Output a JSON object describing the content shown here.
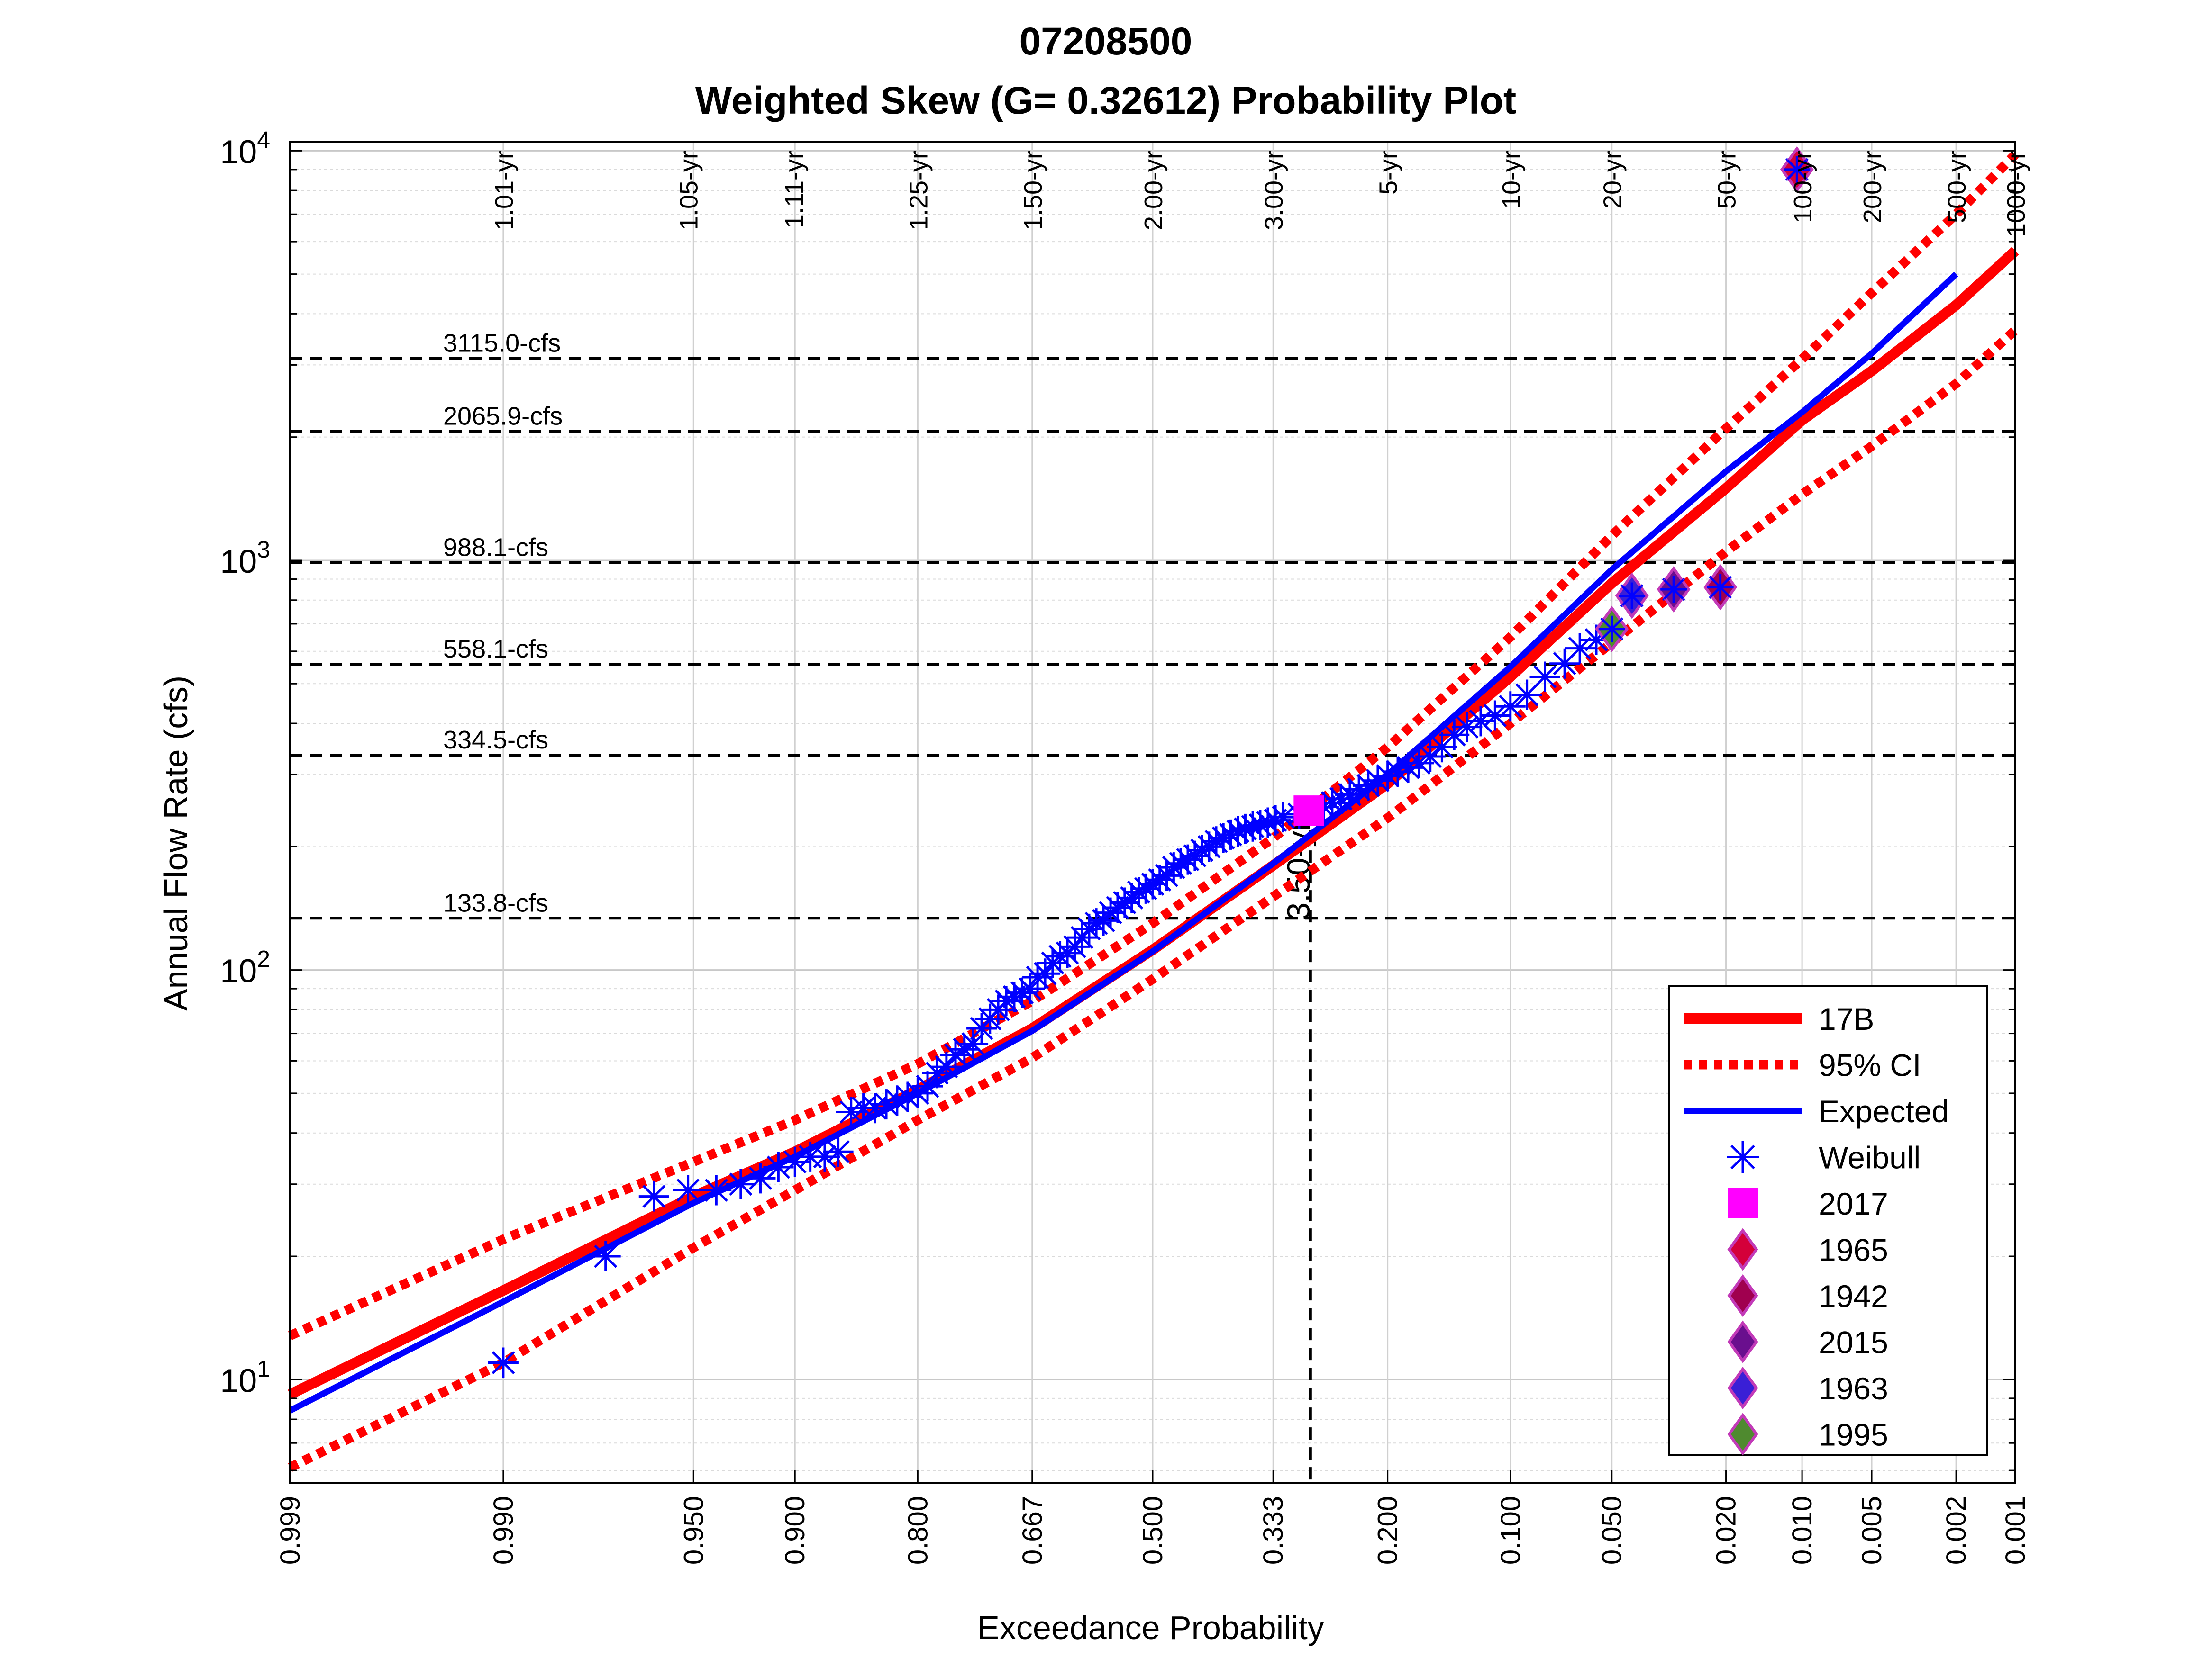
{
  "chart_data": {
    "type": "scatter",
    "title": "07208500",
    "subtitle": "Weighted Skew (G= 0.32612) Probability Plot",
    "xlabel": "Exceedance Probability",
    "ylabel": "Annual Flow Rate (cfs)",
    "x_scale": "normal-probability (reversed)",
    "y_scale": "log",
    "xlim": [
      0.999,
      0.001
    ],
    "ylim": [
      5.6,
      10500
    ],
    "grid": true,
    "legend_position": "bottom-right",
    "x_ticks": [
      "0.999",
      "0.990",
      "0.950",
      "0.900",
      "0.800",
      "0.667",
      "0.500",
      "0.333",
      "0.200",
      "0.100",
      "0.050",
      "0.020",
      "0.010",
      "0.005",
      "0.002",
      "0.001"
    ],
    "x_tick_values": [
      0.999,
      0.99,
      0.95,
      0.9,
      0.8,
      0.667,
      0.5,
      0.333,
      0.2,
      0.1,
      0.05,
      0.02,
      0.01,
      0.005,
      0.002,
      0.001
    ],
    "y_ticks": [
      {
        "value": 10,
        "base": "10",
        "exp": "1"
      },
      {
        "value": 100,
        "base": "10",
        "exp": "2"
      },
      {
        "value": 1000,
        "base": "10",
        "exp": "3"
      },
      {
        "value": 10000,
        "base": "10",
        "exp": "4"
      }
    ],
    "return_period_labels": [
      {
        "label": "1.01-yr",
        "p": 0.99
      },
      {
        "label": "1.05-yr",
        "p": 0.952
      },
      {
        "label": "1.11-yr",
        "p": 0.901
      },
      {
        "label": "1.25-yr",
        "p": 0.8
      },
      {
        "label": "1.50-yr",
        "p": 0.667
      },
      {
        "label": "2.00-yr",
        "p": 0.5
      },
      {
        "label": "3.00-yr",
        "p": 0.333
      },
      {
        "label": "5-yr",
        "p": 0.2
      },
      {
        "label": "10-yr",
        "p": 0.1
      },
      {
        "label": "20-yr",
        "p": 0.05
      },
      {
        "label": "50-yr",
        "p": 0.02
      },
      {
        "label": "100-yr",
        "p": 0.01
      },
      {
        "label": "200-yr",
        "p": 0.005
      },
      {
        "label": "500-yr",
        "p": 0.002
      },
      {
        "label": "1000-yr",
        "p": 0.001
      }
    ],
    "flow_reference_lines": [
      {
        "label": "3115.0-cfs",
        "value": 3115.0
      },
      {
        "label": "2065.9-cfs",
        "value": 2065.9
      },
      {
        "label": "988.1-cfs",
        "value": 988.1
      },
      {
        "label": "558.1-cfs",
        "value": 558.1
      },
      {
        "label": "334.5-cfs",
        "value": 334.5
      },
      {
        "label": "133.8-cfs",
        "value": 133.8
      }
    ],
    "event_marker": {
      "label": "3.50-yr",
      "p": 0.286
    },
    "series": [
      {
        "name": "17B",
        "style": "solid",
        "color": "#ff0000",
        "points": [
          [
            0.999,
            9.2
          ],
          [
            0.99,
            16.5
          ],
          [
            0.95,
            28
          ],
          [
            0.9,
            36
          ],
          [
            0.8,
            51
          ],
          [
            0.667,
            72
          ],
          [
            0.5,
            112
          ],
          [
            0.333,
            180
          ],
          [
            0.2,
            285
          ],
          [
            0.1,
            520
          ],
          [
            0.05,
            880
          ],
          [
            0.02,
            1500
          ],
          [
            0.01,
            2200
          ],
          [
            0.005,
            2900
          ],
          [
            0.002,
            4200
          ],
          [
            0.001,
            5700
          ]
        ]
      },
      {
        "name": "95% CI",
        "style": "dotted",
        "color": "#ff0000",
        "upper": [
          [
            0.999,
            12.8
          ],
          [
            0.99,
            22
          ],
          [
            0.95,
            34
          ],
          [
            0.9,
            43
          ],
          [
            0.8,
            59
          ],
          [
            0.667,
            84
          ],
          [
            0.5,
            130
          ],
          [
            0.333,
            210
          ],
          [
            0.2,
            350
          ],
          [
            0.1,
            650
          ],
          [
            0.05,
            1150
          ],
          [
            0.02,
            2100
          ],
          [
            0.01,
            3100
          ],
          [
            0.005,
            4500
          ],
          [
            0.002,
            7000
          ],
          [
            0.001,
            9800
          ]
        ],
        "lower": [
          [
            0.999,
            6.1
          ],
          [
            0.99,
            11
          ],
          [
            0.95,
            21
          ],
          [
            0.9,
            29
          ],
          [
            0.8,
            43
          ],
          [
            0.667,
            61
          ],
          [
            0.5,
            95
          ],
          [
            0.333,
            151
          ],
          [
            0.2,
            235
          ],
          [
            0.1,
            400
          ],
          [
            0.05,
            630
          ],
          [
            0.02,
            1050
          ],
          [
            0.01,
            1450
          ],
          [
            0.005,
            1900
          ],
          [
            0.002,
            2700
          ],
          [
            0.001,
            3650
          ]
        ]
      },
      {
        "name": "Expected",
        "style": "solid",
        "color": "#0000ff",
        "points": [
          [
            0.999,
            8.4
          ],
          [
            0.99,
            15.5
          ],
          [
            0.95,
            27
          ],
          [
            0.9,
            35
          ],
          [
            0.8,
            50
          ],
          [
            0.667,
            71
          ],
          [
            0.5,
            111
          ],
          [
            0.333,
            182
          ],
          [
            0.2,
            300
          ],
          [
            0.1,
            550
          ],
          [
            0.05,
            950
          ],
          [
            0.02,
            1650
          ],
          [
            0.01,
            2300
          ],
          [
            0.005,
            3200
          ],
          [
            0.002,
            5000
          ]
        ]
      },
      {
        "name": "Weibull",
        "marker": "asterisk",
        "color": "#0000ff",
        "points": [
          [
            0.99,
            11
          ],
          [
            0.975,
            20
          ],
          [
            0.963,
            28
          ],
          [
            0.952,
            29
          ],
          [
            0.941,
            29
          ],
          [
            0.93,
            30
          ],
          [
            0.92,
            31
          ],
          [
            0.91,
            33
          ],
          [
            0.9,
            34
          ],
          [
            0.89,
            35
          ],
          [
            0.88,
            35
          ],
          [
            0.87,
            36
          ],
          [
            0.86,
            45
          ],
          [
            0.85,
            46
          ],
          [
            0.84,
            46
          ],
          [
            0.83,
            47
          ],
          [
            0.82,
            48
          ],
          [
            0.81,
            49
          ],
          [
            0.8,
            50
          ],
          [
            0.79,
            52
          ],
          [
            0.78,
            56
          ],
          [
            0.77,
            58
          ],
          [
            0.76,
            62
          ],
          [
            0.75,
            64
          ],
          [
            0.74,
            66
          ],
          [
            0.73,
            72
          ],
          [
            0.72,
            76
          ],
          [
            0.71,
            80
          ],
          [
            0.7,
            84
          ],
          [
            0.69,
            86
          ],
          [
            0.68,
            88
          ],
          [
            0.67,
            90
          ],
          [
            0.66,
            96
          ],
          [
            0.65,
            98
          ],
          [
            0.64,
            104
          ],
          [
            0.63,
            108
          ],
          [
            0.62,
            110
          ],
          [
            0.61,
            114
          ],
          [
            0.6,
            120
          ],
          [
            0.59,
            126
          ],
          [
            0.58,
            130
          ],
          [
            0.57,
            132
          ],
          [
            0.56,
            138
          ],
          [
            0.55,
            142
          ],
          [
            0.54,
            146
          ],
          [
            0.53,
            150
          ],
          [
            0.52,
            155
          ],
          [
            0.51,
            158
          ],
          [
            0.5,
            162
          ],
          [
            0.49,
            166
          ],
          [
            0.48,
            170
          ],
          [
            0.47,
            178
          ],
          [
            0.46,
            182
          ],
          [
            0.45,
            186
          ],
          [
            0.44,
            190
          ],
          [
            0.43,
            196
          ],
          [
            0.42,
            200
          ],
          [
            0.41,
            206
          ],
          [
            0.4,
            210
          ],
          [
            0.39,
            214
          ],
          [
            0.38,
            218
          ],
          [
            0.37,
            221
          ],
          [
            0.36,
            224
          ],
          [
            0.35,
            226
          ],
          [
            0.34,
            229
          ],
          [
            0.33,
            232
          ],
          [
            0.32,
            236
          ],
          [
            0.3,
            240
          ],
          [
            0.27,
            250
          ],
          [
            0.26,
            256
          ],
          [
            0.25,
            262
          ],
          [
            0.24,
            268
          ],
          [
            0.23,
            276
          ],
          [
            0.22,
            282
          ],
          [
            0.21,
            290
          ],
          [
            0.2,
            298
          ],
          [
            0.19,
            305
          ],
          [
            0.18,
            312
          ],
          [
            0.17,
            320
          ],
          [
            0.16,
            332
          ],
          [
            0.15,
            350
          ],
          [
            0.14,
            375
          ],
          [
            0.13,
            392
          ],
          [
            0.12,
            405
          ],
          [
            0.11,
            418
          ],
          [
            0.1,
            440
          ],
          [
            0.09,
            470
          ],
          [
            0.08,
            520
          ],
          [
            0.07,
            560
          ],
          [
            0.063,
            610
          ],
          [
            0.056,
            640
          ],
          [
            0.05,
            680
          ],
          [
            0.043,
            820
          ],
          [
            0.031,
            850
          ],
          [
            0.021,
            860
          ],
          [
            0.0105,
            9000
          ]
        ]
      },
      {
        "name": "2017",
        "marker": "square",
        "color": "#ff00ff",
        "points": [
          [
            0.288,
            245
          ]
        ]
      },
      {
        "name": "1965",
        "marker": "diamond",
        "color": "#d4003a",
        "points": [
          [
            0.0105,
            9000
          ]
        ]
      },
      {
        "name": "1942",
        "marker": "diamond",
        "color": "#a0004f",
        "points": [
          [
            0.021,
            860
          ]
        ]
      },
      {
        "name": "2015",
        "marker": "diamond",
        "color": "#6a0f8e",
        "points": [
          [
            0.031,
            850
          ]
        ]
      },
      {
        "name": "1963",
        "marker": "diamond",
        "color": "#3a1fd6",
        "points": [
          [
            0.043,
            820
          ]
        ]
      },
      {
        "name": "1995",
        "marker": "diamond",
        "color": "#4f8a2f",
        "points": [
          [
            0.05,
            680
          ]
        ]
      }
    ]
  }
}
